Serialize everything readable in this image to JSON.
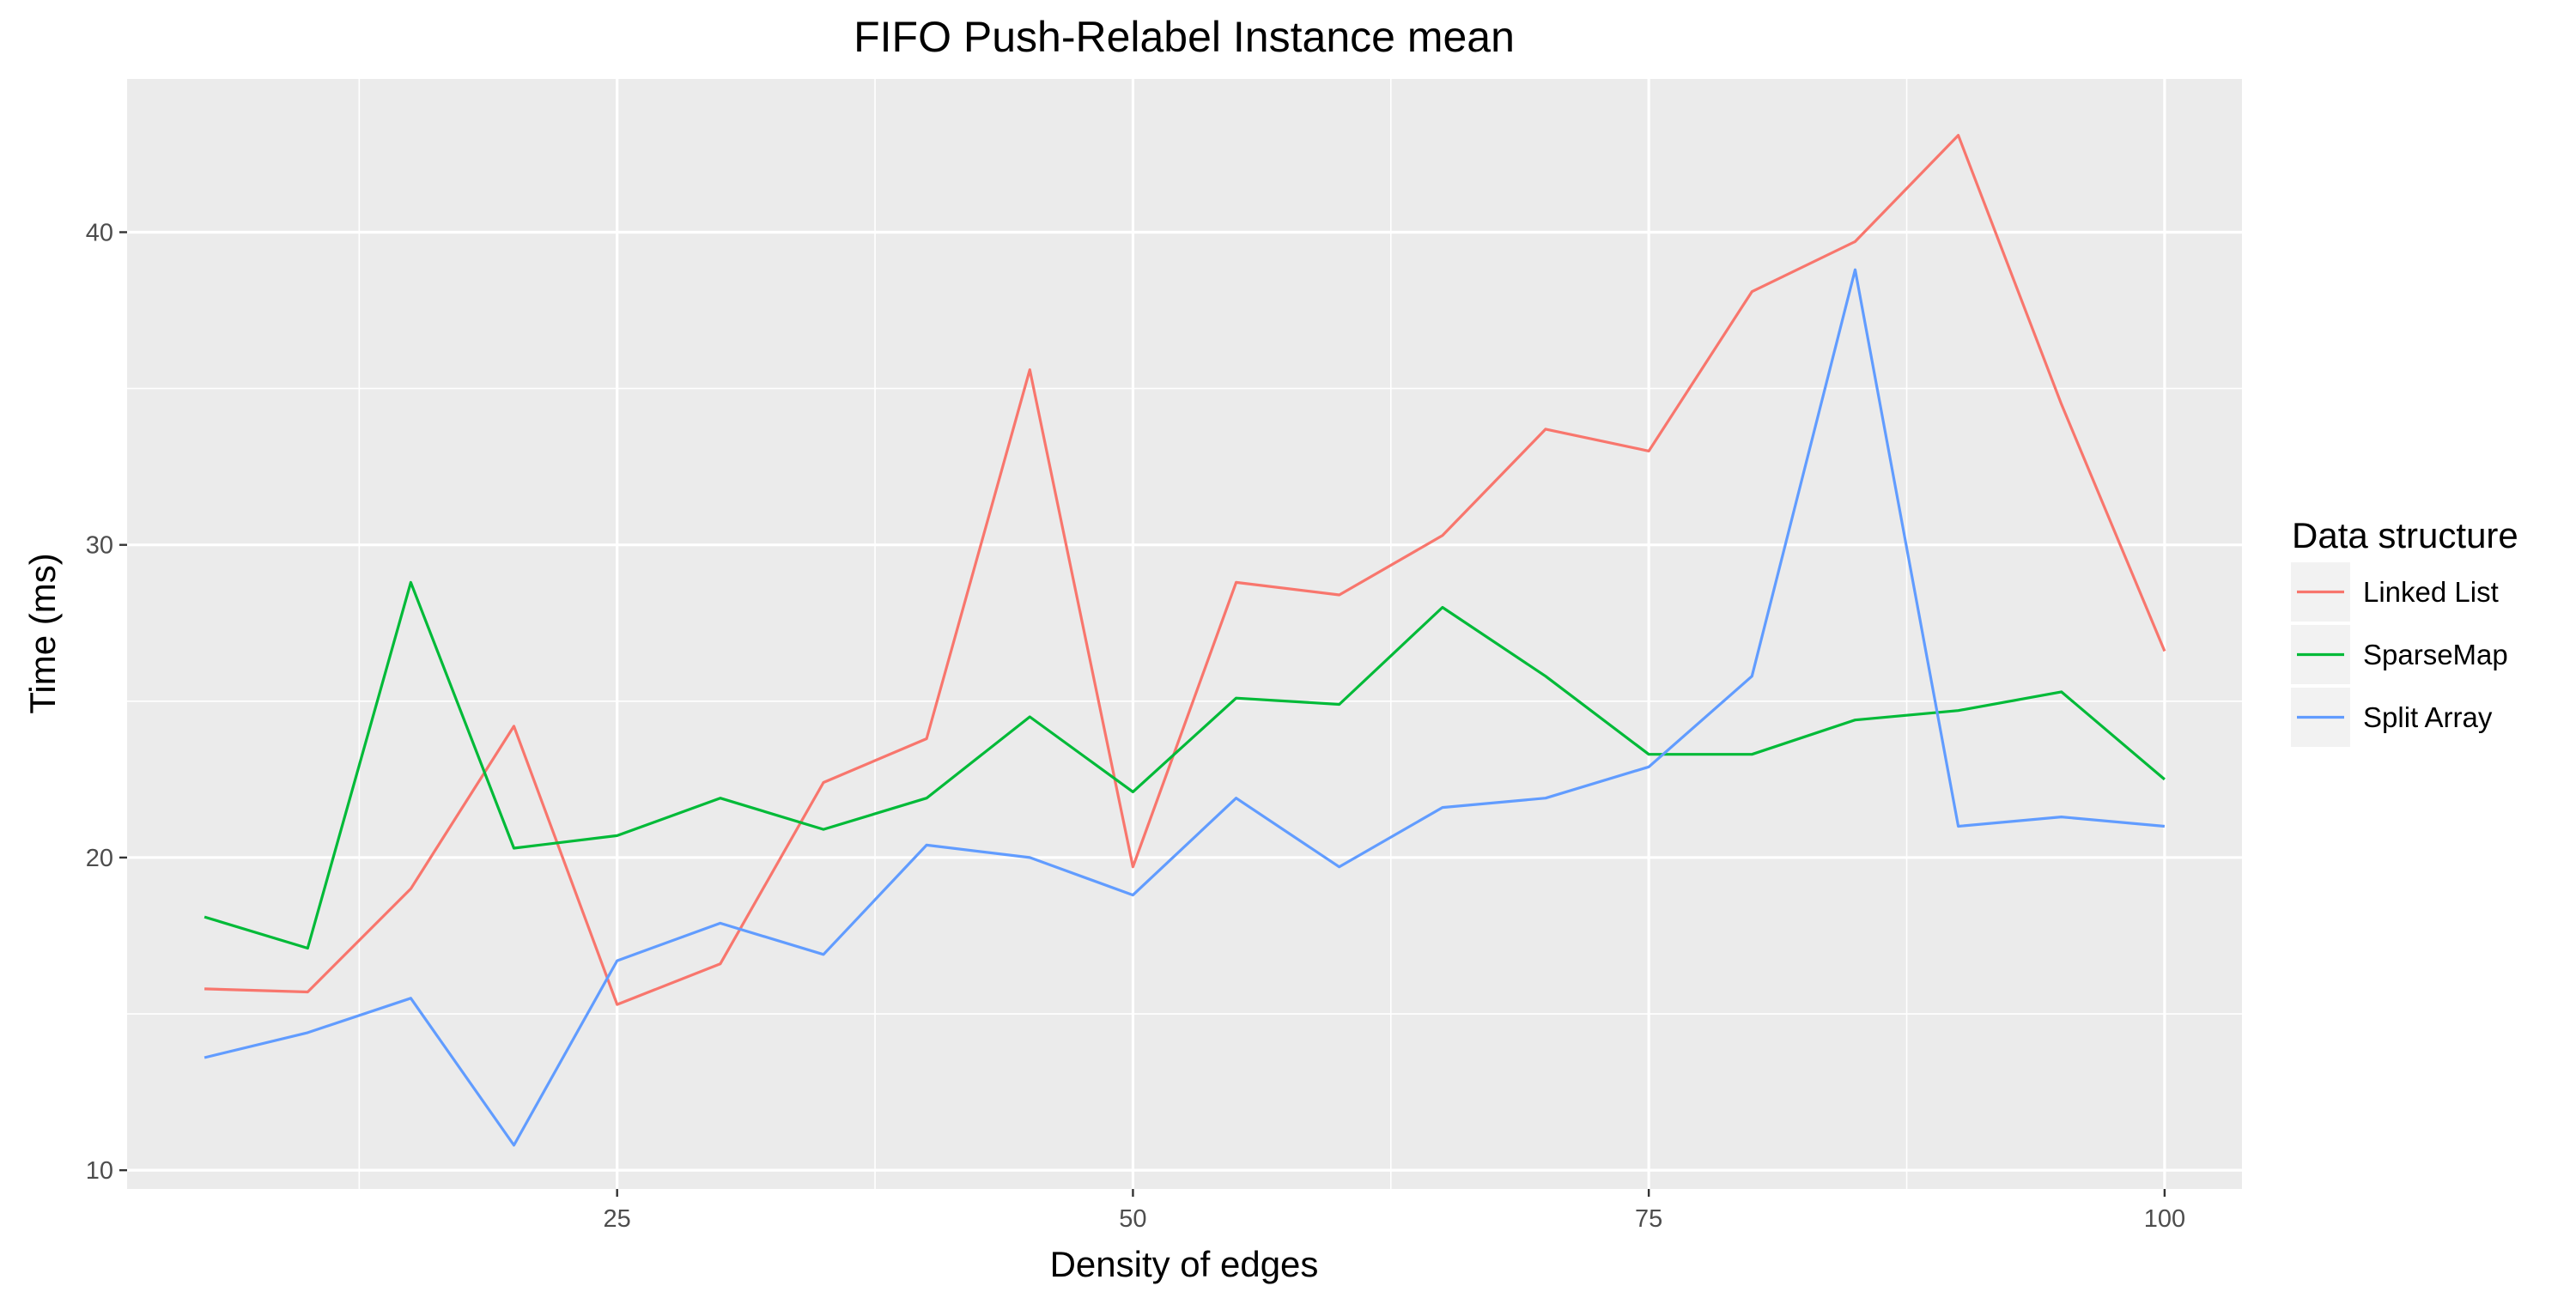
{
  "chart_data": {
    "type": "line",
    "title": "FIFO Push-Relabel Instance mean",
    "xlabel": "Density of edges",
    "ylabel": "Time (ms)",
    "xlim": [
      1.25,
      103.75
    ],
    "ylim": [
      9.4,
      44.9
    ],
    "x_ticks": [
      25,
      50,
      75,
      100
    ],
    "y_ticks": [
      10,
      20,
      30,
      40
    ],
    "grid": true,
    "legend": {
      "title": "Data structure",
      "position": "right"
    },
    "x": [
      5,
      10,
      15,
      20,
      25,
      30,
      35,
      40,
      45,
      50,
      55,
      60,
      65,
      70,
      75,
      80,
      85,
      90,
      95,
      100
    ],
    "series": [
      {
        "name": "Linked List",
        "color": "#F8766D",
        "values": [
          15.8,
          15.7,
          19.0,
          24.2,
          15.3,
          16.6,
          22.4,
          23.8,
          35.6,
          19.7,
          28.8,
          28.4,
          30.3,
          33.7,
          33.0,
          38.1,
          39.7,
          43.1,
          34.5,
          26.6
        ]
      },
      {
        "name": "SparseMap",
        "color": "#00BA38",
        "values": [
          18.1,
          17.1,
          28.8,
          20.3,
          20.7,
          21.9,
          20.9,
          21.9,
          24.5,
          22.1,
          25.1,
          24.9,
          28.0,
          25.8,
          23.3,
          23.3,
          24.4,
          24.7,
          25.3,
          22.5
        ]
      },
      {
        "name": "Split Array",
        "color": "#619CFF",
        "values": [
          13.6,
          14.4,
          15.5,
          10.8,
          16.7,
          17.9,
          16.9,
          20.4,
          20.0,
          18.8,
          21.9,
          19.7,
          21.6,
          21.9,
          22.9,
          25.8,
          38.8,
          21.0,
          21.3,
          21.0
        ]
      }
    ]
  }
}
